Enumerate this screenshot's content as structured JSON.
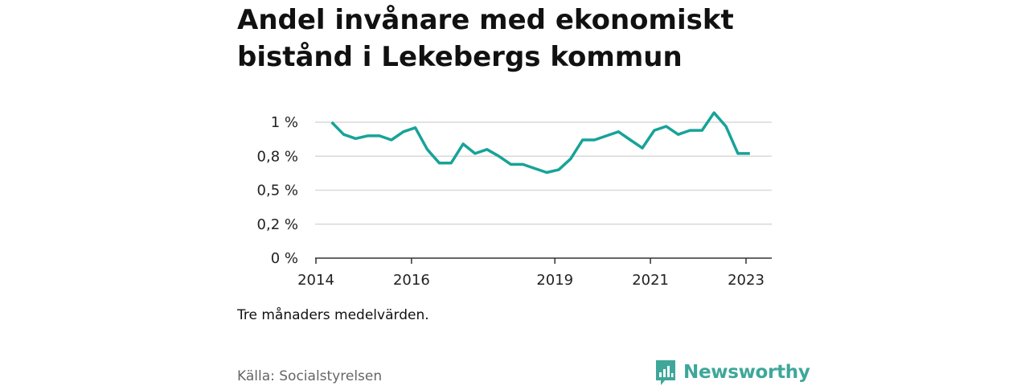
{
  "title": "Andel invånare med ekonomiskt bistånd i Lekebergs kommun",
  "note": "Tre månaders medelvärden.",
  "source": "Källa: Socialstyrelsen",
  "brand": {
    "name": "Newsworthy",
    "color": "#3ea79a",
    "icon": "newsworthy-logo-icon"
  },
  "chart_data": {
    "type": "line",
    "title": "Andel invånare med ekonomiskt bistånd i Lekebergs kommun",
    "xlabel": "",
    "ylabel": "",
    "line_color": "#17a398",
    "grid": true,
    "ylim": [
      0,
      1.0
    ],
    "y_ticks": [
      0,
      0.25,
      0.5,
      0.75,
      1.0
    ],
    "y_tick_labels": [
      "0 %",
      "0,2 %",
      "0,5 %",
      "0,8 %",
      "1 %"
    ],
    "x_ticks": [
      2014,
      2016,
      2019,
      2021,
      2023
    ],
    "x_tick_labels": [
      "2014",
      "2016",
      "2019",
      "2021",
      "2023"
    ],
    "x": [
      2014.33,
      2014.58,
      2014.83,
      2015.08,
      2015.33,
      2015.58,
      2015.83,
      2016.08,
      2016.33,
      2016.58,
      2016.83,
      2017.08,
      2017.33,
      2017.58,
      2017.83,
      2018.08,
      2018.33,
      2018.58,
      2018.83,
      2019.08,
      2019.33,
      2019.58,
      2019.83,
      2020.08,
      2020.33,
      2020.58,
      2020.83,
      2021.08,
      2021.33,
      2021.58,
      2021.83,
      2022.08,
      2022.33,
      2022.58,
      2022.83,
      2023.08
    ],
    "series": [
      {
        "values": [
          1.0,
          0.91,
          0.88,
          0.9,
          0.9,
          0.87,
          0.93,
          0.96,
          0.8,
          0.7,
          0.7,
          0.84,
          0.77,
          0.8,
          0.75,
          0.69,
          0.69,
          0.66,
          0.63,
          0.65,
          0.73,
          0.87,
          0.87,
          0.9,
          0.93,
          0.87,
          0.81,
          0.94,
          0.97,
          0.91,
          0.94,
          0.94,
          1.07,
          0.97,
          0.77,
          0.77
        ]
      }
    ]
  }
}
